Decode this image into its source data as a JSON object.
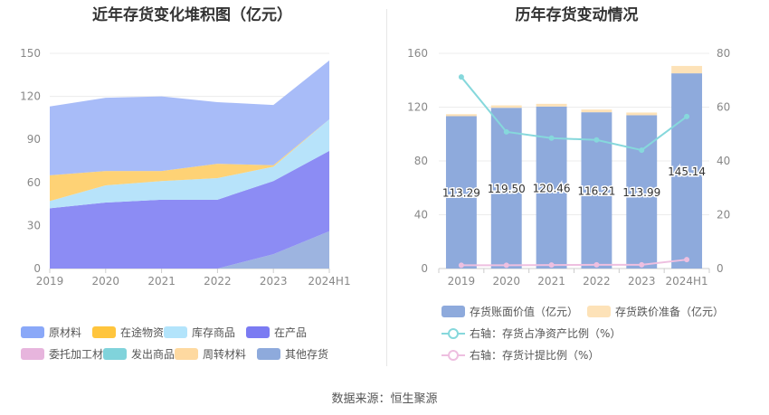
{
  "source": "数据来源：恒生聚源",
  "chart_data": [
    {
      "type": "area",
      "stacked": true,
      "title": "近年存货变化堆积图（亿元）",
      "categories": [
        "2019",
        "2020",
        "2021",
        "2022",
        "2023",
        "2024H1"
      ],
      "ylim": [
        0,
        150
      ],
      "yticks": [
        0,
        30,
        60,
        90,
        120,
        150
      ],
      "series": [
        {
          "name": "其他存货",
          "color": "#9db4e0",
          "values": [
            0,
            0,
            0,
            0,
            10,
            26
          ]
        },
        {
          "name": "在产品",
          "color": "#8c8cf4",
          "values": [
            42,
            46,
            48,
            48,
            51,
            56
          ]
        },
        {
          "name": "库存商品",
          "color": "#b7e3fa",
          "values": [
            5,
            12,
            13,
            15,
            10,
            22
          ]
        },
        {
          "name": "周转材料",
          "color": "#fdd88e",
          "values": [
            0,
            0,
            0,
            0,
            0,
            0
          ]
        },
        {
          "name": "在途物资",
          "color": "#fed275",
          "values": [
            18,
            10,
            7,
            10,
            1,
            0
          ]
        },
        {
          "name": "委托加工材料",
          "color": "#e6b8dc",
          "values": [
            0,
            0,
            0,
            0,
            0,
            0
          ]
        },
        {
          "name": "发出商品",
          "color": "#86d8de",
          "values": [
            0,
            0,
            0,
            0,
            0,
            0
          ]
        },
        {
          "name": "原材料",
          "color": "#a8bcf8",
          "values": [
            48,
            51,
            52,
            43,
            42,
            41
          ]
        }
      ],
      "legend": [
        "原材料",
        "在途物资",
        "库存商品",
        "在产品",
        "委托加工材料",
        "发出商品",
        "周转材料",
        "其他存货"
      ],
      "legend_colors": [
        "#8aa8f8",
        "#ffc53d",
        "#b3e4fb",
        "#7b7bf2",
        "#e7b5dd",
        "#80d3db",
        "#fed9a0",
        "#8eaadc"
      ]
    },
    {
      "type": "bar+line",
      "title": "历年存货变动情况",
      "categories": [
        "2019",
        "2020",
        "2021",
        "2022",
        "2023",
        "2024H1"
      ],
      "ylim_left": [
        0,
        160
      ],
      "yticks_left": [
        0,
        40,
        80,
        120,
        160
      ],
      "ylim_right": [
        0,
        80
      ],
      "yticks_right": [
        0,
        20,
        40,
        60,
        80
      ],
      "series": [
        {
          "name": "存货账面价值（亿元）",
          "type": "bar",
          "axis": "left",
          "color": "#8eaadc",
          "values": [
            113.29,
            119.5,
            120.46,
            116.21,
            113.99,
            145.14
          ],
          "labels": [
            "113.29",
            "119.50",
            "120.46",
            "116.21",
            "113.99",
            "145.14"
          ]
        },
        {
          "name": "存货跌价准备（亿元）",
          "type": "bar",
          "axis": "left",
          "color": "#fde2b8",
          "values": [
            1.5,
            1.8,
            2.0,
            2.0,
            2.0,
            5.5
          ]
        },
        {
          "name": "右轴：存货占净资产比例（%）",
          "type": "line",
          "axis": "right",
          "color": "#86d8dc",
          "values": [
            71.2,
            50.8,
            48.5,
            47.8,
            44.0,
            56.5
          ]
        },
        {
          "name": "右轴：存货计提比例（%）",
          "type": "line",
          "axis": "right",
          "color": "#eebfe0",
          "values": [
            1.2,
            1.2,
            1.3,
            1.4,
            1.4,
            3.3
          ]
        }
      ]
    }
  ]
}
